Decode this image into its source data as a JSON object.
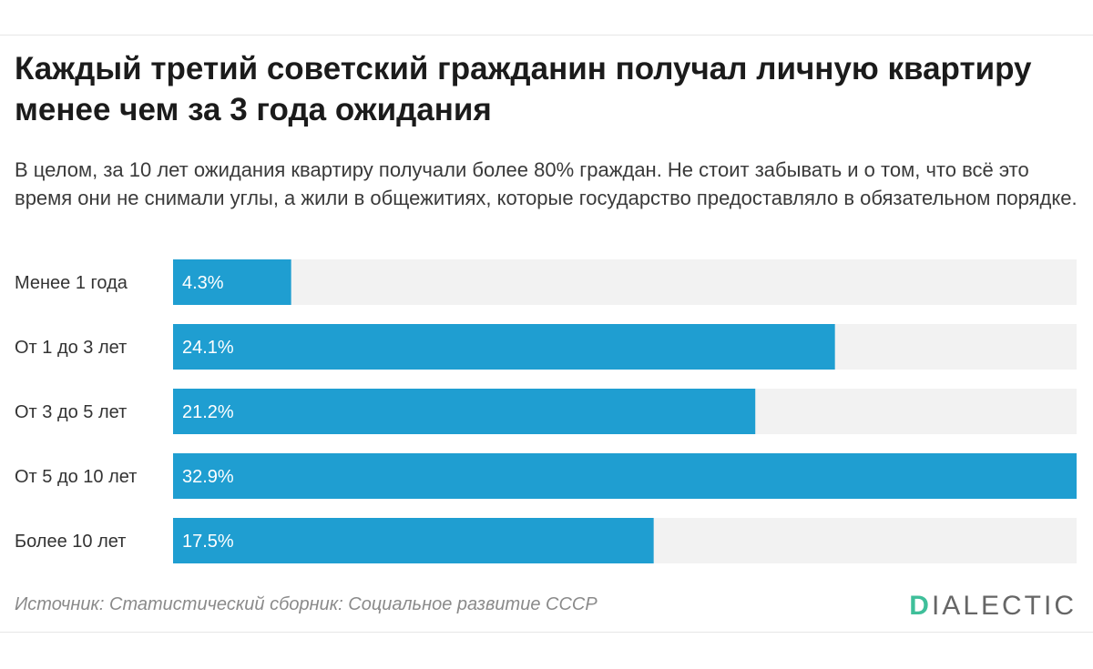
{
  "colors": {
    "bar": "#1f9ed1",
    "track": "#f2f2f2",
    "label_on_bar": "#ffffff",
    "category_text": "#333333",
    "logo_accent": "#3fbf9a"
  },
  "chart_data": {
    "type": "bar",
    "orientation": "horizontal",
    "title": "Каждый третий советский гражданин получал личную квартиру менее чем за 3 года ожидания",
    "subtitle": "В целом, за 10 лет ожидания квартиру получали более 80% граждан. Не стоит забывать и о том, что всё это время они не снимали углы, а жили в общежитиях, которые государство предоставляло в обязательном порядке.",
    "categories": [
      "Менее 1 года",
      "От 1 до 3 лет",
      "От 3 до 5 лет",
      "От 5 до 10 лет",
      "Более 10 лет"
    ],
    "values": [
      4.3,
      24.1,
      21.2,
      32.9,
      17.5
    ],
    "value_labels": [
      "4.3%",
      "24.1%",
      "21.2%",
      "32.9%",
      "17.5%"
    ],
    "xlim": [
      0,
      32.9
    ],
    "grid": false,
    "legend": "none"
  },
  "footer": {
    "source": "Источник: Статистический сборник: Социальное развитие СССР",
    "logo_first": "D",
    "logo_rest": "IALECTIC"
  }
}
